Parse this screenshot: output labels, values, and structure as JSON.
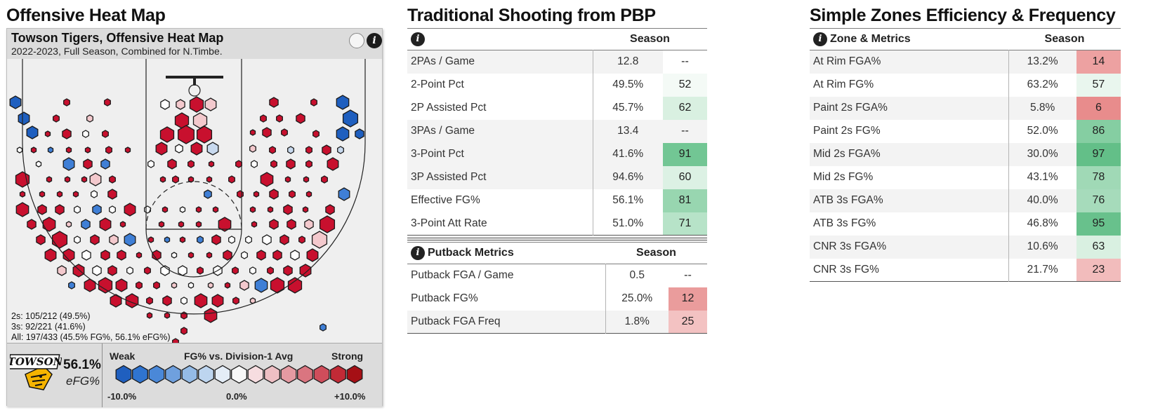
{
  "sections": {
    "heatmap_title": "Offensive Heat Map",
    "traditional_title": "Traditional Shooting from PBP",
    "zones_title": "Simple Zones Efficiency & Frequency"
  },
  "heatmap": {
    "card_title": "Towson Tigers, Offensive Heat Map",
    "subtitle": "2022-2023, Full Season, Combined for N.Timbe.",
    "stats": [
      "2s: 105/212 (49.5%)",
      "3s: 92/221 (41.6%)",
      "All: 197/433 (45.5% FG%, 56.1% eFG%)"
    ],
    "logo_text": "TOWSON",
    "efg_value": "56.1%",
    "efg_label": "eFG%",
    "legend": {
      "weak": "Weak",
      "title": "FG% vs. Division-1 Avg",
      "strong": "Strong",
      "min": "-10.0%",
      "mid": "0.0%",
      "max": "+10.0%",
      "colors": [
        "#1f5fbf",
        "#2f74d0",
        "#4a88d8",
        "#6fa0de",
        "#94bbe6",
        "#bdd5ef",
        "#e4edf7",
        "#f7f7f7",
        "#f6dde0",
        "#eebfc4",
        "#e59aa2",
        "#da7580",
        "#cf4d5b",
        "#c22a36",
        "#a50f15"
      ]
    },
    "icons": [
      "circle-icon",
      "info-icon"
    ]
  },
  "traditional": {
    "header_col": "Season",
    "info_icon": "i",
    "rows": [
      {
        "label": "2PAs / Game",
        "value": "12.8",
        "pct": "--",
        "color": "#ffffff"
      },
      {
        "label": "2-Point Pct",
        "value": "49.5%",
        "pct": "52",
        "color": "#f4faf6"
      },
      {
        "label": "2P Assisted Pct",
        "value": "45.7%",
        "pct": "62",
        "color": "#d9f0e1"
      },
      {
        "label": "3PAs / Game",
        "value": "13.4",
        "pct": "--",
        "color": "#f3f3f3"
      },
      {
        "label": "3-Point Pct",
        "value": "41.6%",
        "pct": "91",
        "color": "#72c694"
      },
      {
        "label": "3P Assisted Pct",
        "value": "94.6%",
        "pct": "60",
        "color": "#dcf1e4"
      },
      {
        "label": "Effective FG%",
        "value": "56.1%",
        "pct": "81",
        "color": "#98d6b0"
      },
      {
        "label": "3-Point Att Rate",
        "value": "51.0%",
        "pct": "71",
        "color": "#b7e3c8"
      }
    ],
    "putback": {
      "title": "Putback Metrics",
      "header_col": "Season",
      "rows": [
        {
          "label": "Putback FGA / Game",
          "value": "0.5",
          "pct": "--",
          "color": "#ffffff"
        },
        {
          "label": "Putback FG%",
          "value": "25.0%",
          "pct": "12",
          "color": "#ea9c9c"
        },
        {
          "label": "Putback FGA Freq",
          "value": "1.8%",
          "pct": "25",
          "color": "#f3c2c2"
        }
      ]
    }
  },
  "zones": {
    "header_label": "Zone & Metrics",
    "header_col": "Season",
    "rows": [
      {
        "label": "At Rim FGA%",
        "value": "13.2%",
        "pct": "14",
        "color": "#eda1a1"
      },
      {
        "label": "At Rim FG%",
        "value": "63.2%",
        "pct": "57",
        "color": "#e9f6ee"
      },
      {
        "label": "Paint 2s FGA%",
        "value": "5.8%",
        "pct": "6",
        "color": "#e88c8c"
      },
      {
        "label": "Paint 2s FG%",
        "value": "52.0%",
        "pct": "86",
        "color": "#85cea2"
      },
      {
        "label": "Mid 2s FGA%",
        "value": "30.0%",
        "pct": "97",
        "color": "#63bf88"
      },
      {
        "label": "Mid 2s FG%",
        "value": "43.1%",
        "pct": "78",
        "color": "#a0d9b6"
      },
      {
        "label": "ATB 3s FGA%",
        "value": "40.0%",
        "pct": "76",
        "color": "#a6dbbb"
      },
      {
        "label": "ATB 3s FG%",
        "value": "46.8%",
        "pct": "95",
        "color": "#68c18c"
      },
      {
        "label": "CNR 3s FGA%",
        "value": "10.6%",
        "pct": "63",
        "color": "#d9f0e1"
      },
      {
        "label": "CNR 3s FG%",
        "value": "21.7%",
        "pct": "23",
        "color": "#f2bcbc"
      }
    ]
  }
}
